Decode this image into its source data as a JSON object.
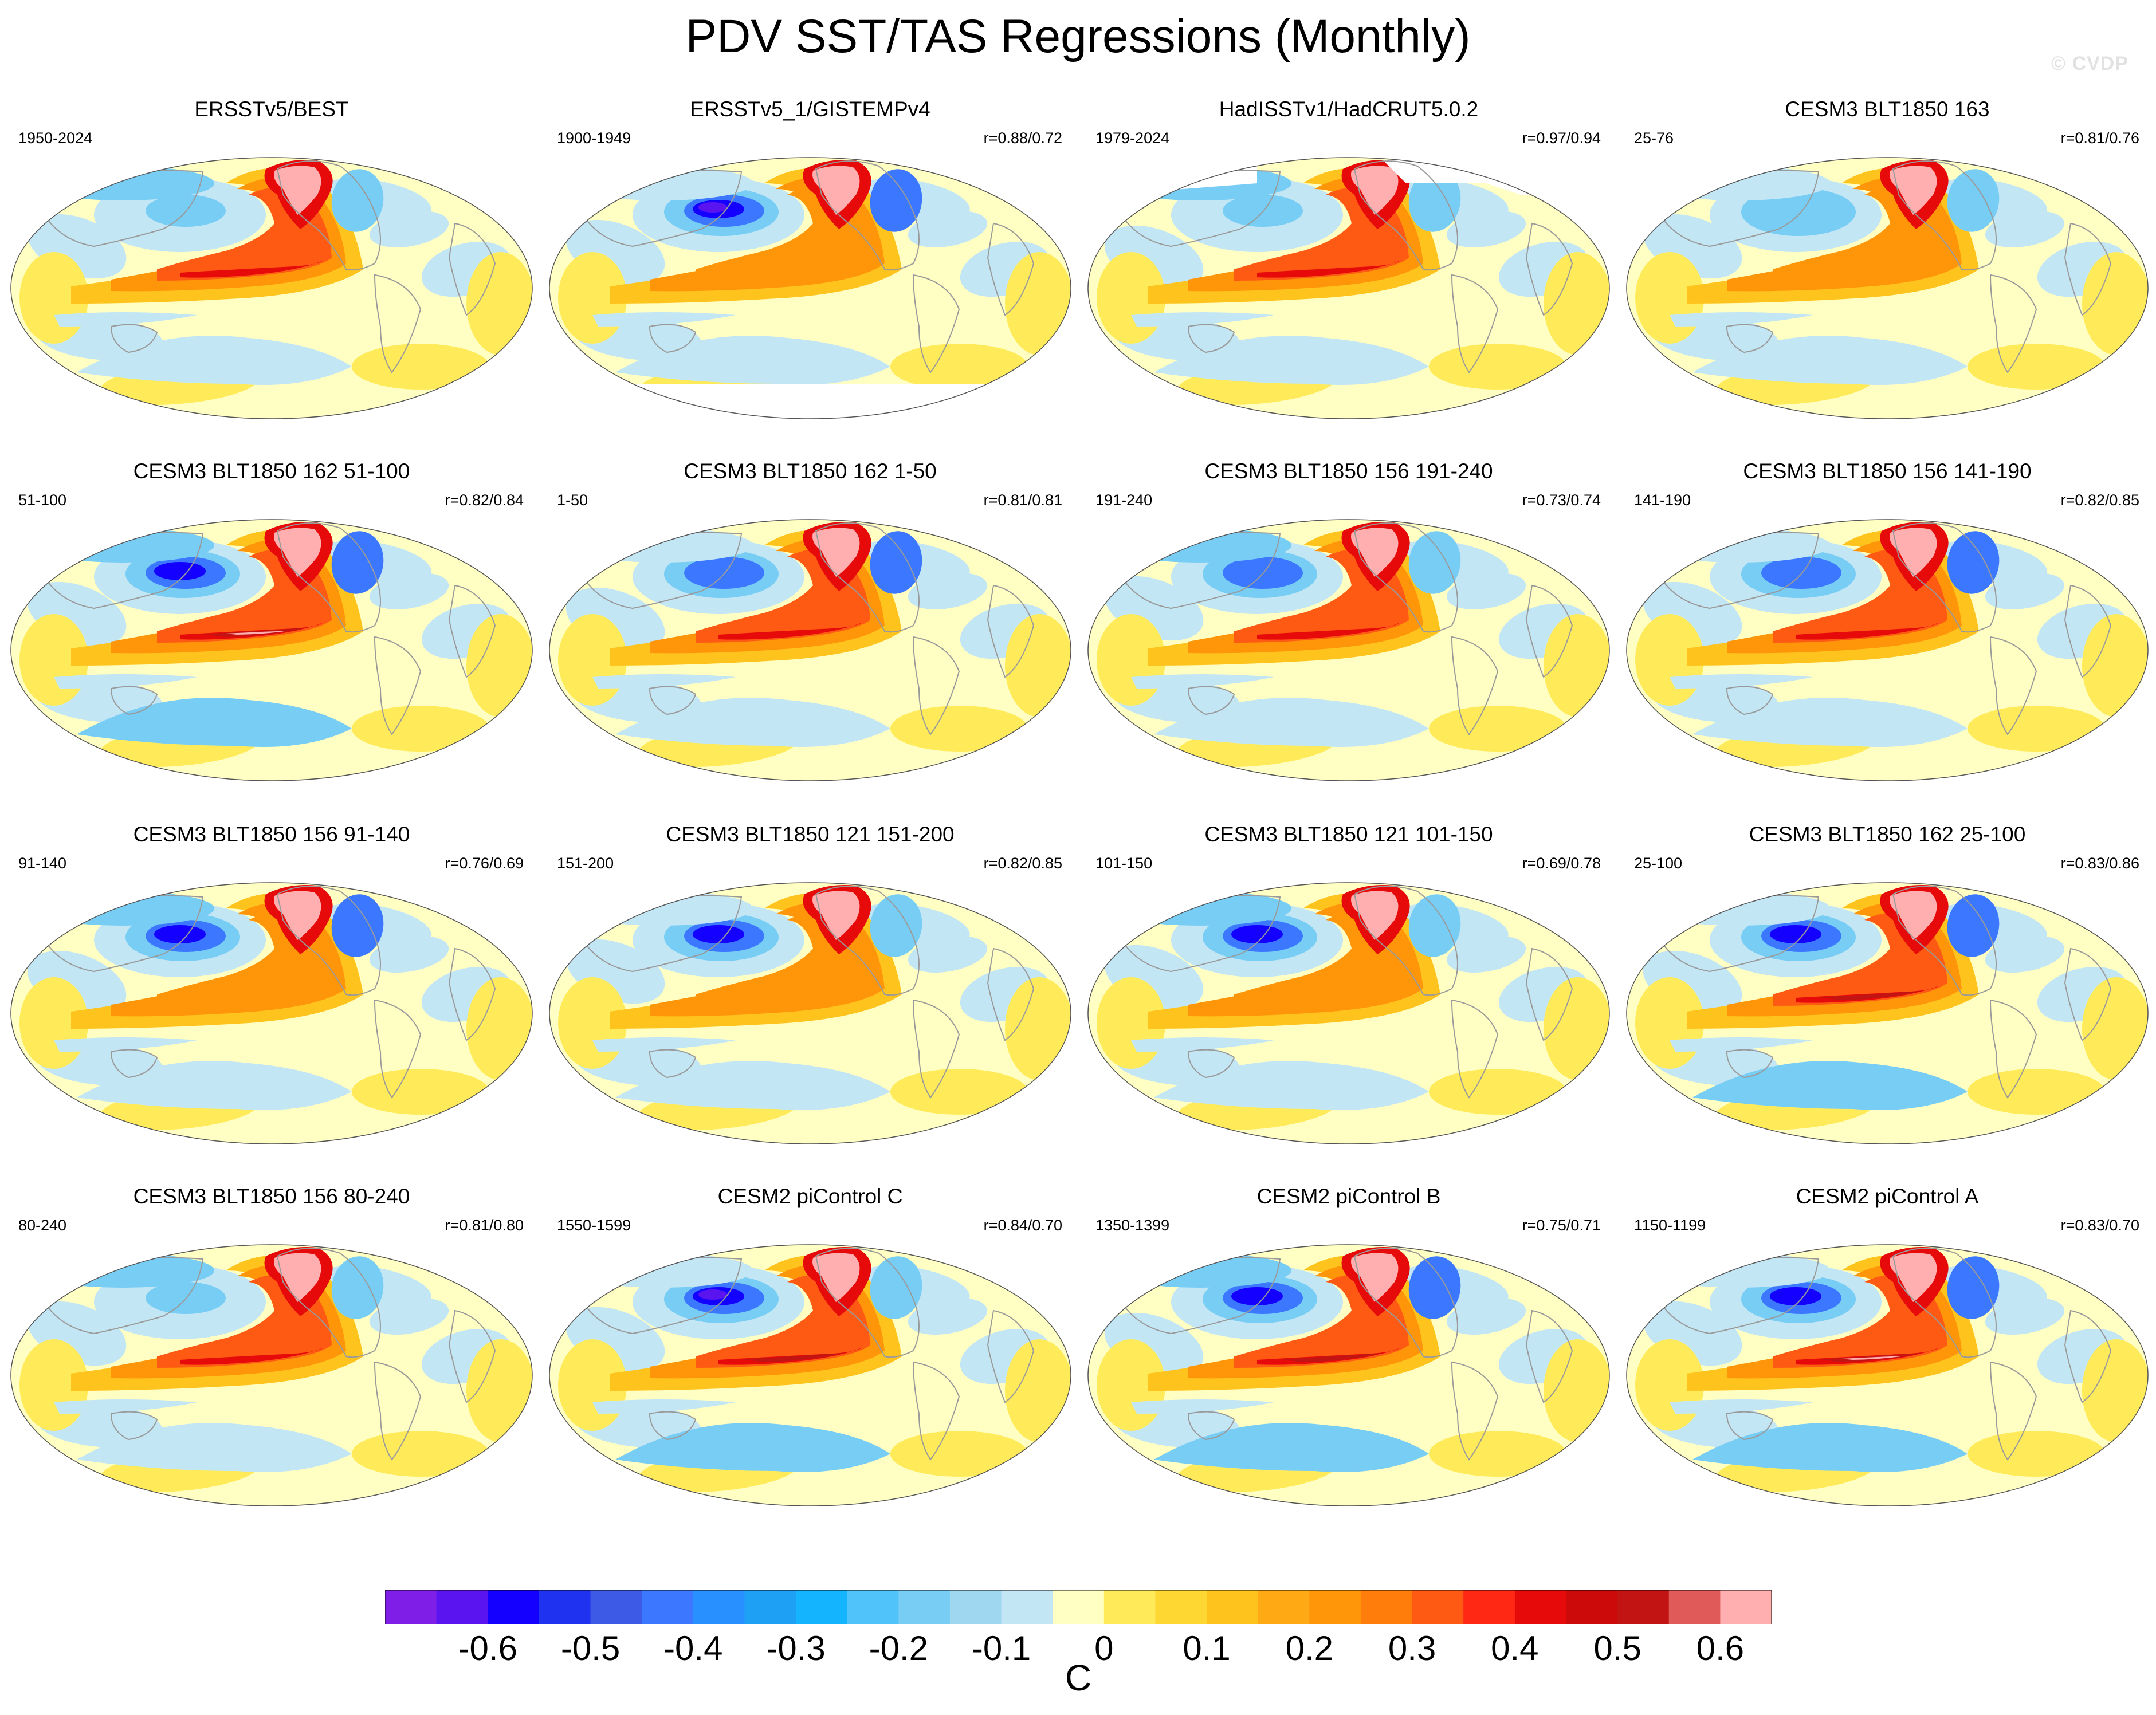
{
  "title": "PDV SST/TAS Regressions (Monthly)",
  "watermark": "© CVDP",
  "panels": [
    {
      "title": "ERSSTv5/BEST",
      "period": "1950-2024",
      "corr": "",
      "cool_level": 0.3,
      "warm_level": 0.55,
      "variant": 0,
      "white_south": false,
      "white_north": false
    },
    {
      "title": "ERSSTv5_1/GISTEMPv4",
      "period": "1900-1949",
      "corr": "r=0.88/0.72",
      "cool_level": 0.7,
      "warm_level": 0.45,
      "variant": 1,
      "white_south": true,
      "white_north": false
    },
    {
      "title": "HadISSTv1/HadCRUT5.0.2",
      "period": "1979-2024",
      "corr": "r=0.97/0.94",
      "cool_level": 0.3,
      "warm_level": 0.55,
      "variant": 2,
      "white_south": false,
      "white_north": true
    },
    {
      "title": "CESM3 BLT1850 163",
      "period": "25-76",
      "corr": "r=0.81/0.76",
      "cool_level": 0.5,
      "warm_level": 0.45,
      "variant": 3,
      "white_south": false,
      "white_north": false
    },
    {
      "title": "CESM3 BLT1850 162 51-100",
      "period": "51-100",
      "corr": "r=0.82/0.84",
      "cool_level": 0.6,
      "warm_level": 0.75,
      "variant": 4,
      "white_south": false,
      "white_north": false
    },
    {
      "title": "CESM3 BLT1850 162 1-50",
      "period": "1-50",
      "corr": "r=0.81/0.81",
      "cool_level": 0.55,
      "warm_level": 0.55,
      "variant": 5,
      "white_south": false,
      "white_north": false
    },
    {
      "title": "CESM3 BLT1850 156 191-240",
      "period": "191-240",
      "corr": "r=0.73/0.74",
      "cool_level": 0.55,
      "warm_level": 0.55,
      "variant": 6,
      "white_south": false,
      "white_north": false
    },
    {
      "title": "CESM3 BLT1850 156 141-190",
      "period": "141-190",
      "corr": "r=0.82/0.85",
      "cool_level": 0.55,
      "warm_level": 0.6,
      "variant": 7,
      "white_south": false,
      "white_north": false
    },
    {
      "title": "CESM3 BLT1850 156 91-140",
      "period": "91-140",
      "corr": "r=0.76/0.69",
      "cool_level": 0.65,
      "warm_level": 0.45,
      "variant": 8,
      "white_south": false,
      "white_north": false
    },
    {
      "title": "CESM3 BLT1850 121 151-200",
      "period": "151-200",
      "corr": "r=0.82/0.85",
      "cool_level": 0.65,
      "warm_level": 0.5,
      "variant": 9,
      "white_south": false,
      "white_north": false
    },
    {
      "title": "CESM3 BLT1850 121 101-150",
      "period": "101-150",
      "corr": "r=0.69/0.78",
      "cool_level": 0.65,
      "warm_level": 0.4,
      "variant": 10,
      "white_south": false,
      "white_north": false
    },
    {
      "title": "CESM3 BLT1850 162 25-100",
      "period": "25-100",
      "corr": "r=0.83/0.86",
      "cool_level": 0.6,
      "warm_level": 0.7,
      "variant": 11,
      "white_south": false,
      "white_north": false
    },
    {
      "title": "CESM3 BLT1850 156 80-240",
      "period": "80-240",
      "corr": "r=0.81/0.80",
      "cool_level": 0.35,
      "warm_level": 0.55,
      "variant": 12,
      "white_south": false,
      "white_north": false
    },
    {
      "title": "CESM2 piControl C",
      "period": "1550-1599",
      "corr": "r=0.84/0.70",
      "cool_level": 0.7,
      "warm_level": 0.7,
      "variant": 13,
      "white_south": false,
      "white_north": false
    },
    {
      "title": "CESM2 piControl B",
      "period": "1350-1399",
      "corr": "r=0.75/0.71",
      "cool_level": 0.65,
      "warm_level": 0.7,
      "variant": 14,
      "white_south": false,
      "white_north": false
    },
    {
      "title": "CESM2 piControl A",
      "period": "1150-1199",
      "corr": "r=0.83/0.70",
      "cool_level": 0.6,
      "warm_level": 0.75,
      "variant": 15,
      "white_south": false,
      "white_north": false
    }
  ],
  "colorbar": {
    "unit": "C",
    "colors": [
      "#7f1ee6",
      "#5a14f0",
      "#1400ff",
      "#1e32f0",
      "#3c5ae6",
      "#3c78ff",
      "#2890ff",
      "#1ea0f5",
      "#14b4ff",
      "#50c3fa",
      "#78cdf5",
      "#a0d7f0",
      "#c3e6f5",
      "#ffffc3",
      "#ffeb5a",
      "#ffd732",
      "#ffc31e",
      "#ffaa14",
      "#ff960a",
      "#ff7d0a",
      "#ff5a14",
      "#ff2814",
      "#e60a0a",
      "#cd0a0a",
      "#c31414",
      "#e15a5a",
      "#ffafaf"
    ],
    "labels": [
      {
        "text": "-0.6",
        "boundary": 2
      },
      {
        "text": "-0.5",
        "boundary": 4
      },
      {
        "text": "-0.4",
        "boundary": 6
      },
      {
        "text": "-0.3",
        "boundary": 8
      },
      {
        "text": "-0.2",
        "boundary": 10
      },
      {
        "text": "-0.1",
        "boundary": 12
      },
      {
        "text": "0",
        "boundary": 14
      },
      {
        "text": "0.1",
        "boundary": 16
      },
      {
        "text": "0.2",
        "boundary": 18
      },
      {
        "text": "0.3",
        "boundary": 20
      },
      {
        "text": "0.4",
        "boundary": 22
      },
      {
        "text": "0.5",
        "boundary": 24
      },
      {
        "text": "0.6",
        "boundary": 26
      }
    ]
  }
}
